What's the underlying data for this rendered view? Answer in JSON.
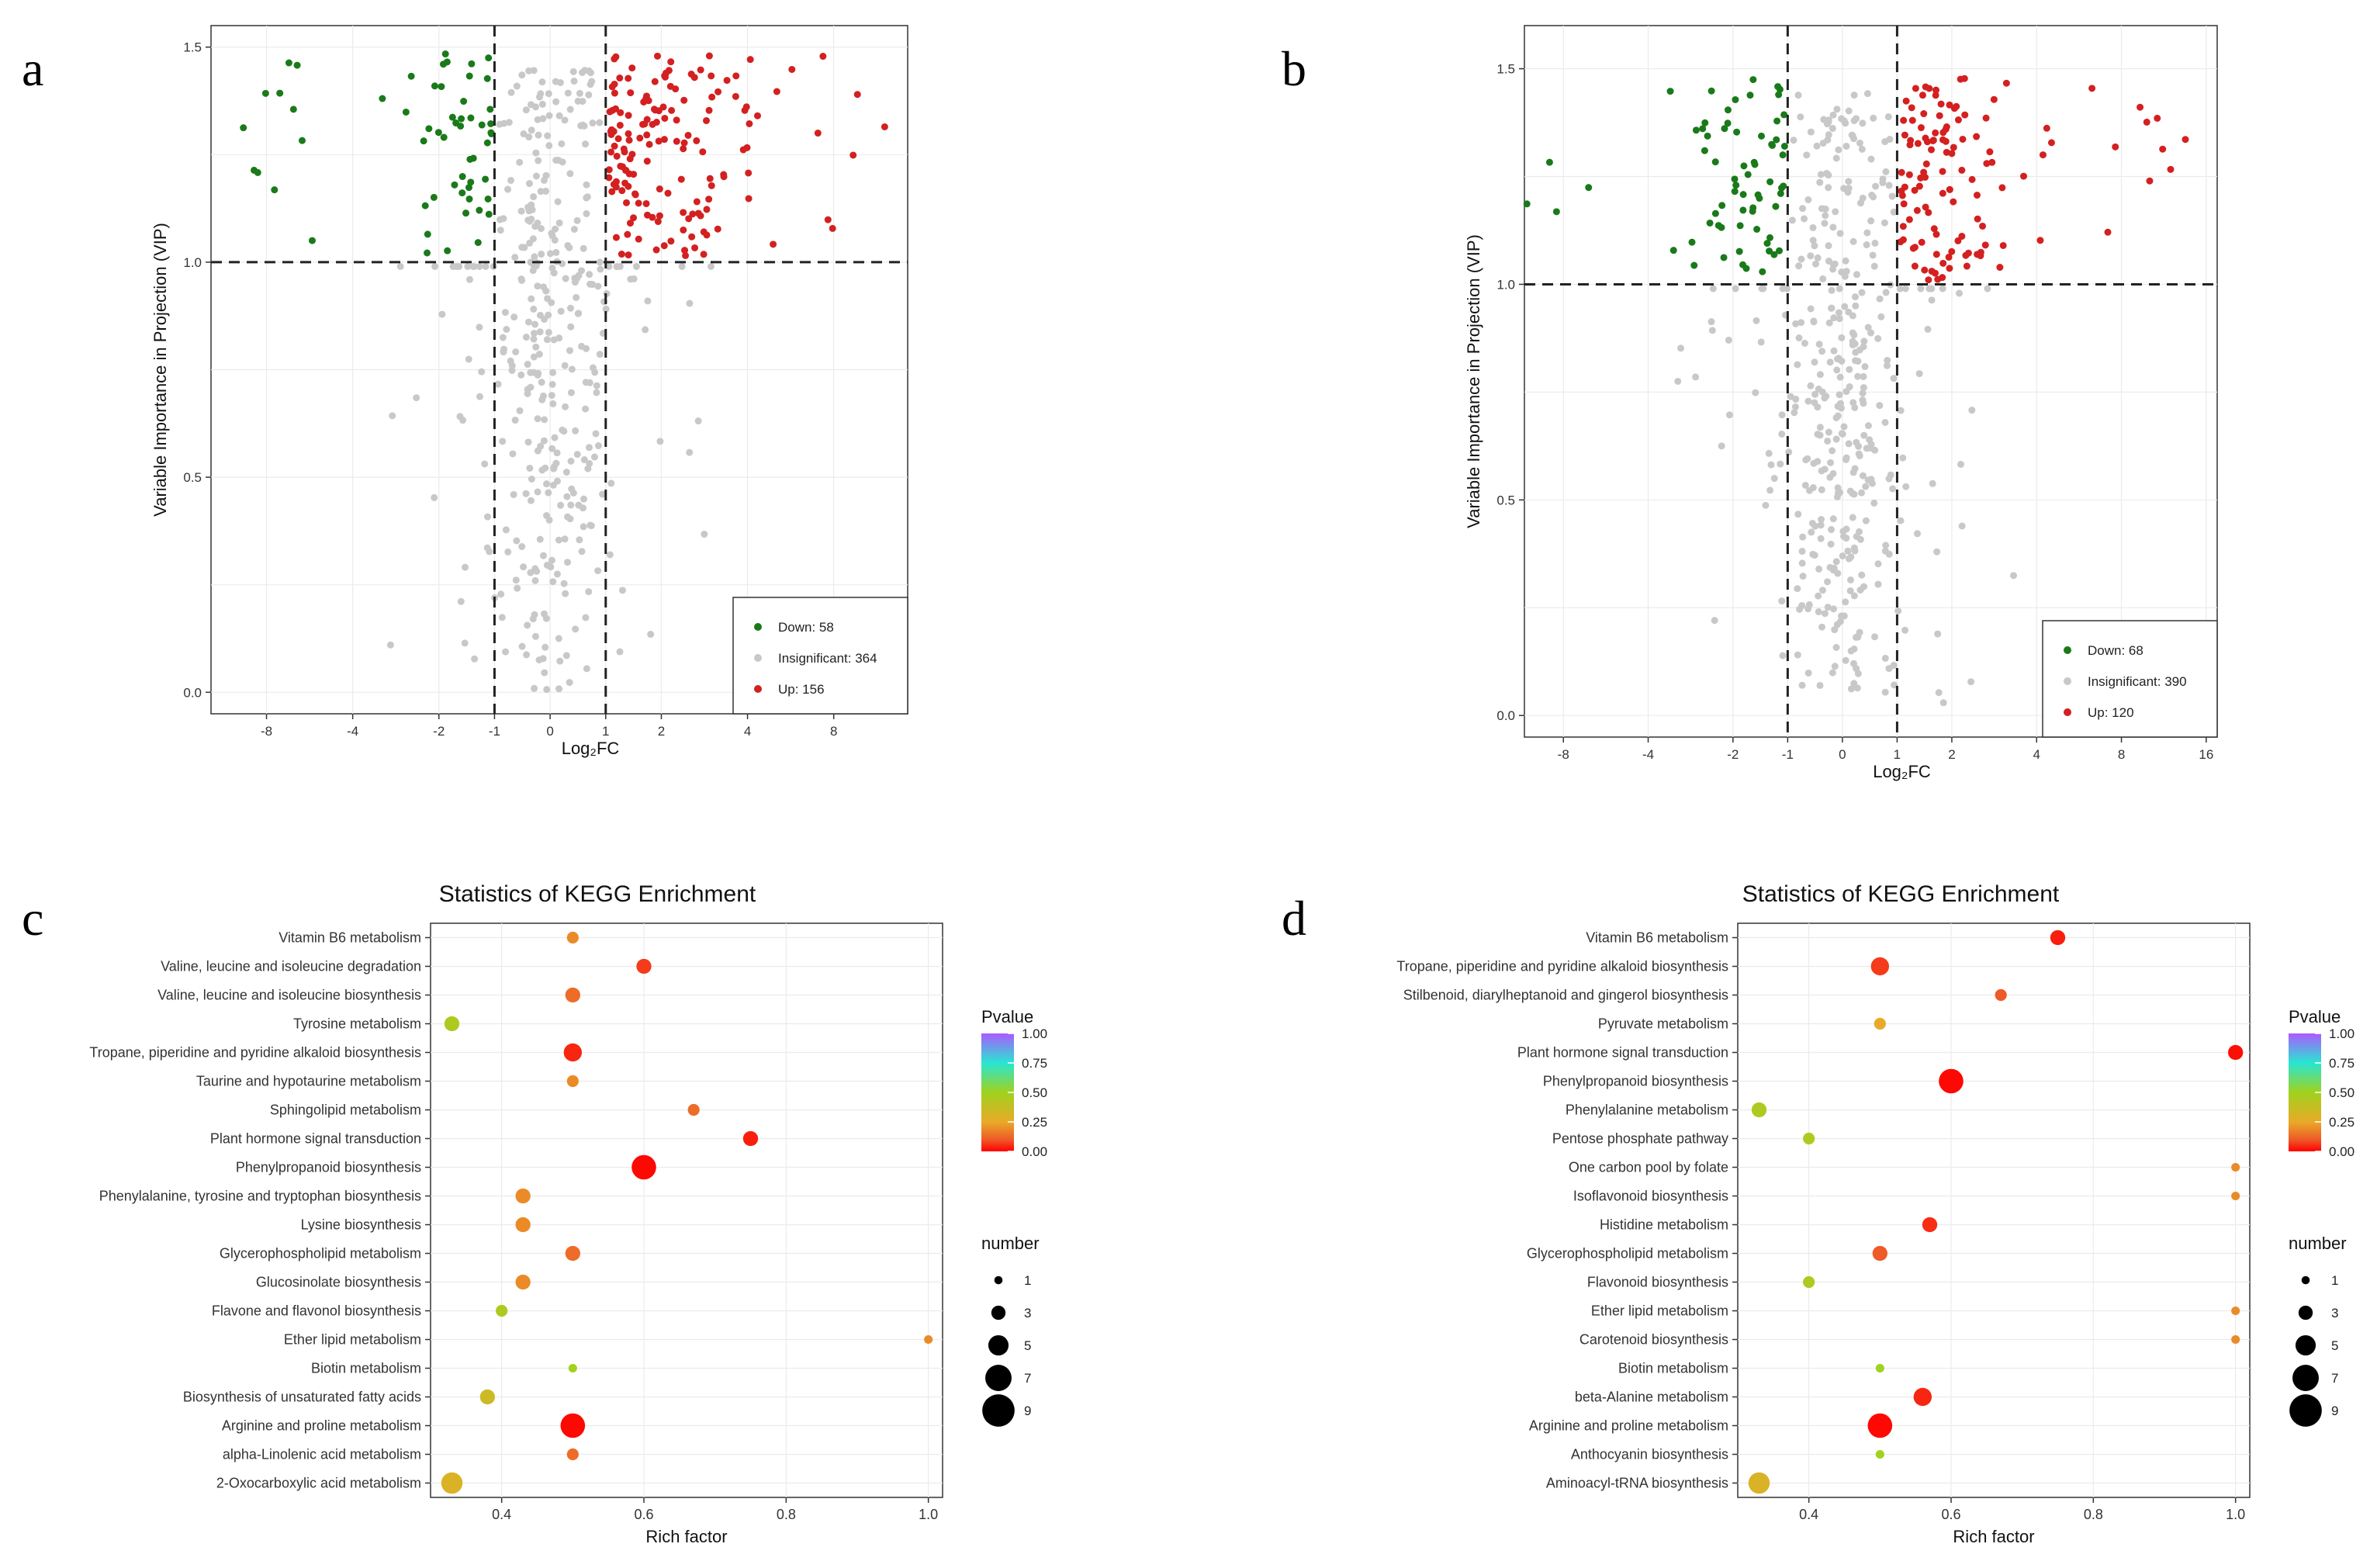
{
  "panels": [
    "a",
    "b",
    "c",
    "d"
  ],
  "colors": {
    "down": "#1a7a1a",
    "insig": "#c8c8c8",
    "up": "#d42020",
    "grid": "#ebebeb"
  },
  "chart_data": [
    {
      "id": "a",
      "type": "scatter",
      "xlabel": "Log₂FC",
      "ylabel": "Variable Importance in Projection (VIP)",
      "xlim": [
        -12.5,
        14.5
      ],
      "ylim": [
        -0.05,
        1.55
      ],
      "xticks": [
        -8,
        -4,
        -2,
        -1,
        0,
        1,
        2,
        4,
        8
      ],
      "yticks": [
        0.0,
        0.5,
        1.0,
        1.5
      ],
      "thresholds": {
        "x": [
          -1,
          1
        ],
        "y": 1.0
      },
      "legend": {
        "position": "bottom-right",
        "entries": [
          "Down: 58",
          "Insignificant: 364",
          "Up: 156"
        ]
      },
      "counts": {
        "down": 58,
        "insig": 364,
        "up": 156
      },
      "seed": 11
    },
    {
      "id": "b",
      "type": "scatter",
      "xlabel": "Log₂FC",
      "ylabel": "Variable Importance in Projection (VIP)",
      "xlim": [
        -11,
        17.5
      ],
      "ylim": [
        -0.05,
        1.6
      ],
      "xticks": [
        -8,
        -4,
        -2,
        -1,
        0,
        1,
        2,
        4,
        8,
        16
      ],
      "yticks": [
        0.0,
        0.5,
        1.0,
        1.5
      ],
      "thresholds": {
        "x": [
          -1,
          1
        ],
        "y": 1.0
      },
      "legend": {
        "position": "bottom-right",
        "entries": [
          "Down: 68",
          "Insignificant: 390",
          "Up: 120"
        ]
      },
      "counts": {
        "down": 68,
        "insig": 390,
        "up": 120
      },
      "seed": 29
    },
    {
      "id": "c",
      "type": "bubble",
      "title": "Statistics of KEGG Enrichment",
      "xlabel": "Rich factor",
      "xlim": [
        0.3,
        1.02
      ],
      "xticks": [
        0.4,
        0.6,
        0.8,
        1.0
      ],
      "pvalue_ticks": [
        "1.00",
        "0.75",
        "0.50",
        "0.25",
        "0.00"
      ],
      "size_ticks": [
        1,
        3,
        5,
        7,
        9
      ],
      "legend_titles": {
        "color": "Pvalue",
        "size": "number"
      },
      "pathways": [
        {
          "name": "Vitamin B6 metabolism",
          "rich": 0.5,
          "pvalue": 0.2,
          "number": 2
        },
        {
          "name": "Valine, leucine and isoleucine degradation",
          "rich": 0.6,
          "pvalue": 0.08,
          "number": 3
        },
        {
          "name": "Valine, leucine and isoleucine biosynthesis",
          "rich": 0.5,
          "pvalue": 0.15,
          "number": 3
        },
        {
          "name": "Tyrosine metabolism",
          "rich": 0.33,
          "pvalue": 0.45,
          "number": 3
        },
        {
          "name": "Tropane, piperidine and pyridine alkaloid biosynthesis",
          "rich": 0.5,
          "pvalue": 0.05,
          "number": 4
        },
        {
          "name": "Taurine and hypotaurine metabolism",
          "rich": 0.5,
          "pvalue": 0.2,
          "number": 2
        },
        {
          "name": "Sphingolipid metabolism",
          "rich": 0.67,
          "pvalue": 0.15,
          "number": 2
        },
        {
          "name": "Plant hormone signal transduction",
          "rich": 0.75,
          "pvalue": 0.04,
          "number": 3
        },
        {
          "name": "Phenylpropanoid biosynthesis",
          "rich": 0.6,
          "pvalue": 0.01,
          "number": 6
        },
        {
          "name": "Phenylalanine, tyrosine and tryptophan biosynthesis",
          "rich": 0.43,
          "pvalue": 0.2,
          "number": 3
        },
        {
          "name": "Lysine biosynthesis",
          "rich": 0.43,
          "pvalue": 0.2,
          "number": 3
        },
        {
          "name": "Glycerophospholipid metabolism",
          "rich": 0.5,
          "pvalue": 0.15,
          "number": 3
        },
        {
          "name": "Glucosinolate biosynthesis",
          "rich": 0.43,
          "pvalue": 0.2,
          "number": 3
        },
        {
          "name": "Flavone and flavonol biosynthesis",
          "rich": 0.4,
          "pvalue": 0.45,
          "number": 2
        },
        {
          "name": "Ether lipid metabolism",
          "rich": 1.0,
          "pvalue": 0.2,
          "number": 1
        },
        {
          "name": "Biotin metabolism",
          "rich": 0.5,
          "pvalue": 0.5,
          "number": 1
        },
        {
          "name": "Biosynthesis of unsaturated fatty acids",
          "rich": 0.38,
          "pvalue": 0.35,
          "number": 3
        },
        {
          "name": "Arginine and proline metabolism",
          "rich": 0.5,
          "pvalue": 0.01,
          "number": 6
        },
        {
          "name": "alpha-Linolenic acid metabolism",
          "rich": 0.5,
          "pvalue": 0.15,
          "number": 2
        },
        {
          "name": "2-Oxocarboxylic acid metabolism",
          "rich": 0.33,
          "pvalue": 0.3,
          "number": 5
        }
      ]
    },
    {
      "id": "d",
      "type": "bubble",
      "title": "Statistics of KEGG Enrichment",
      "xlabel": "Rich factor",
      "xlim": [
        0.3,
        1.02
      ],
      "xticks": [
        0.4,
        0.6,
        0.8,
        1.0
      ],
      "pvalue_ticks": [
        "1.00",
        "0.75",
        "0.50",
        "0.25",
        "0.00"
      ],
      "size_ticks": [
        1,
        3,
        5,
        7,
        9
      ],
      "legend_titles": {
        "color": "Pvalue",
        "size": "number"
      },
      "pathways": [
        {
          "name": "Vitamin B6 metabolism",
          "rich": 0.75,
          "pvalue": 0.04,
          "number": 3
        },
        {
          "name": "Tropane, piperidine and pyridine alkaloid biosynthesis",
          "rich": 0.5,
          "pvalue": 0.08,
          "number": 4
        },
        {
          "name": "Stilbenoid, diarylheptanoid and gingerol biosynthesis",
          "rich": 0.67,
          "pvalue": 0.12,
          "number": 2
        },
        {
          "name": "Pyruvate metabolism",
          "rich": 0.5,
          "pvalue": 0.25,
          "number": 2
        },
        {
          "name": "Plant hormone signal transduction",
          "rich": 1.0,
          "pvalue": 0.02,
          "number": 3
        },
        {
          "name": "Phenylpropanoid biosynthesis",
          "rich": 0.6,
          "pvalue": 0.01,
          "number": 6
        },
        {
          "name": "Phenylalanine metabolism",
          "rich": 0.33,
          "pvalue": 0.45,
          "number": 3
        },
        {
          "name": "Pentose phosphate pathway",
          "rich": 0.4,
          "pvalue": 0.45,
          "number": 2
        },
        {
          "name": "One carbon pool by folate",
          "rich": 1.0,
          "pvalue": 0.2,
          "number": 1
        },
        {
          "name": "Isoflavonoid biosynthesis",
          "rich": 1.0,
          "pvalue": 0.2,
          "number": 1
        },
        {
          "name": "Histidine metabolism",
          "rich": 0.57,
          "pvalue": 0.06,
          "number": 3
        },
        {
          "name": "Glycerophospholipid metabolism",
          "rich": 0.5,
          "pvalue": 0.12,
          "number": 3
        },
        {
          "name": "Flavonoid biosynthesis",
          "rich": 0.4,
          "pvalue": 0.45,
          "number": 2
        },
        {
          "name": "Ether lipid metabolism",
          "rich": 1.0,
          "pvalue": 0.2,
          "number": 1
        },
        {
          "name": "Carotenoid biosynthesis",
          "rich": 1.0,
          "pvalue": 0.2,
          "number": 1
        },
        {
          "name": "Biotin metabolism",
          "rich": 0.5,
          "pvalue": 0.5,
          "number": 1
        },
        {
          "name": "beta-Alanine metabolism",
          "rich": 0.56,
          "pvalue": 0.05,
          "number": 4
        },
        {
          "name": "Arginine and proline metabolism",
          "rich": 0.5,
          "pvalue": 0.01,
          "number": 6
        },
        {
          "name": "Anthocyanin biosynthesis",
          "rich": 0.5,
          "pvalue": 0.5,
          "number": 1
        },
        {
          "name": "Aminoacyl-tRNA biosynthesis",
          "rich": 0.33,
          "pvalue": 0.3,
          "number": 5
        }
      ]
    }
  ]
}
